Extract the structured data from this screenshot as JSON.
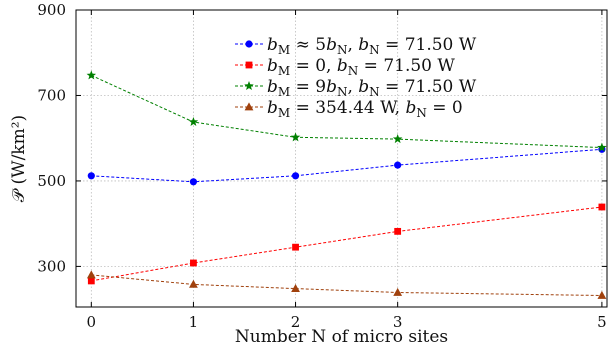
{
  "chart_data": {
    "type": "line",
    "title": "",
    "xlabel": "Number N of micro sites",
    "ylabel": "𝒫 (W/km²)",
    "x": [
      0,
      1,
      2,
      3,
      5
    ],
    "xticks": [
      "0",
      "1",
      "2",
      "3",
      "5"
    ],
    "yticks": [
      "300",
      "500",
      "700",
      "900"
    ],
    "xlim": [
      -0.15,
      5.05
    ],
    "ylim": [
      205,
      900
    ],
    "grid": true,
    "legend_position": "top-right",
    "series": [
      {
        "name": "b_M ≈ 5b_N, b_N = 71.50 W",
        "color": "#0000ff",
        "marker": "circle",
        "values": [
          512,
          498,
          512,
          537,
          574
        ]
      },
      {
        "name": "b_M = 0, b_N = 71.50 W",
        "color": "#ff0000",
        "marker": "square",
        "values": [
          266,
          308,
          345,
          382,
          439
        ]
      },
      {
        "name": "b_M = 9b_N, b_N = 71.50 W",
        "color": "#008000",
        "marker": "star",
        "values": [
          747,
          638,
          602,
          598,
          578
        ]
      },
      {
        "name": "b_M = 354.44 W, b_N = 0",
        "color": "#a0410d",
        "marker": "triangle",
        "values": [
          280,
          258,
          248,
          239,
          232
        ]
      }
    ]
  }
}
